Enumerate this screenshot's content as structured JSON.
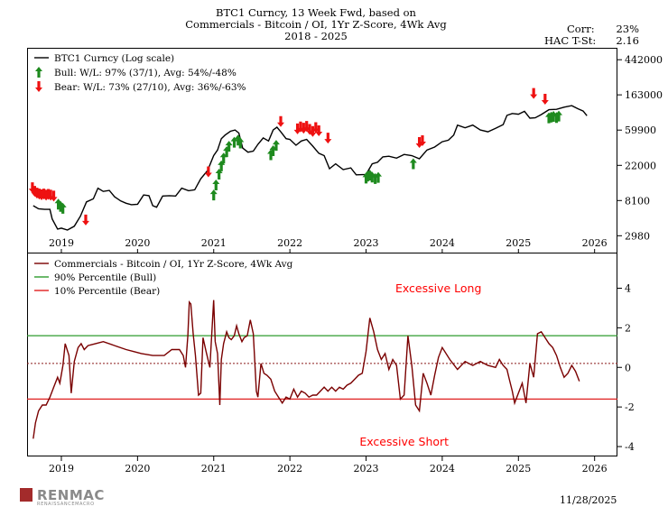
{
  "header": {
    "title_line1": "BTC1 Curncy, 13 Week Fwd, based on",
    "title_line2": "Commercials - Bitcoin / OI, 1Yr Z-Score, 4Wk Avg",
    "title_line3": "2018 - 2025",
    "corr_label": "Corr:",
    "corr_value": "23%",
    "hac_label": "HAC T-St:",
    "hac_value": "2.16"
  },
  "footer": {
    "logo_text": "RENMAC",
    "logo_sub": "RENAISSANCEMACRO",
    "date": "11/28/2025"
  },
  "colors": {
    "price_line": "#000000",
    "zscore_line": "#7a0000",
    "bull_line": "#2e9b2e",
    "bear_line": "#e02020",
    "bull_arrow": "#1e8a1e",
    "bear_arrow": "#ee1111",
    "annotation": "#ff0000"
  },
  "chart_data": [
    {
      "type": "line",
      "scale": "log",
      "title": "",
      "ylabel": "",
      "xlabel": "",
      "ylim": [
        1800,
        620000
      ],
      "xlim": [
        2018.55,
        2026.3
      ],
      "x_ticks": [
        "2019",
        "2020",
        "2021",
        "2022",
        "2023",
        "2024",
        "2025",
        "2026"
      ],
      "y_ticks": [
        "442000",
        "163000",
        "59900",
        "22000",
        "8100",
        "2980"
      ],
      "y_tick_values": [
        442000,
        163000,
        59900,
        22000,
        8100,
        2980
      ],
      "legend": [
        {
          "label": "BTC1 Curncy (Log scale)",
          "marker": "line"
        },
        {
          "label": "Bull:  W/L: 97% (37/1), Avg: 54%/-48%",
          "marker": "up-arrow"
        },
        {
          "label": "Bear:  W/L: 73% (27/10), Avg: 36%/-63%",
          "marker": "down-arrow"
        }
      ],
      "legend_position": "top-left",
      "series": [
        {
          "name": "BTC1 Curncy (Log scale)",
          "x": [
            2018.63,
            2018.7,
            2018.78,
            2018.85,
            2018.88,
            2018.95,
            2019.0,
            2019.08,
            2019.17,
            2019.25,
            2019.33,
            2019.42,
            2019.48,
            2019.55,
            2019.63,
            2019.7,
            2019.78,
            2019.85,
            2019.92,
            2020.0,
            2020.08,
            2020.15,
            2020.2,
            2020.25,
            2020.33,
            2020.42,
            2020.5,
            2020.58,
            2020.67,
            2020.75,
            2020.83,
            2020.92,
            2021.0,
            2021.05,
            2021.1,
            2021.15,
            2021.22,
            2021.28,
            2021.33,
            2021.38,
            2021.45,
            2021.52,
            2021.58,
            2021.65,
            2021.72,
            2021.78,
            2021.83,
            2021.88,
            2021.95,
            2022.0,
            2022.08,
            2022.15,
            2022.22,
            2022.3,
            2022.38,
            2022.45,
            2022.52,
            2022.6,
            2022.7,
            2022.8,
            2022.87,
            2022.95,
            2023.0,
            2023.08,
            2023.15,
            2023.22,
            2023.3,
            2023.4,
            2023.5,
            2023.6,
            2023.7,
            2023.8,
            2023.9,
            2024.0,
            2024.08,
            2024.15,
            2024.2,
            2024.3,
            2024.4,
            2024.5,
            2024.6,
            2024.7,
            2024.8,
            2024.85,
            2024.92,
            2025.0,
            2025.08,
            2025.15,
            2025.22,
            2025.3,
            2025.4,
            2025.5,
            2025.6,
            2025.7,
            2025.78,
            2025.85,
            2025.9
          ],
          "values": [
            7000,
            6400,
            6300,
            6300,
            4800,
            3600,
            3700,
            3500,
            3900,
            5200,
            7800,
            8500,
            11500,
            10500,
            10800,
            9000,
            8000,
            7500,
            7200,
            7300,
            9500,
            9300,
            7000,
            6700,
            9200,
            9300,
            9200,
            11500,
            10700,
            11000,
            15000,
            19000,
            29000,
            34000,
            47000,
            52000,
            58000,
            60000,
            55000,
            36000,
            32000,
            33000,
            40000,
            48000,
            44000,
            60000,
            65000,
            57000,
            47000,
            46000,
            39000,
            44000,
            46000,
            38000,
            31000,
            29000,
            20000,
            23000,
            19500,
            20500,
            16800,
            16900,
            17000,
            23000,
            24000,
            28000,
            28500,
            27000,
            30000,
            29000,
            26500,
            34000,
            37000,
            43000,
            45000,
            52000,
            69000,
            64000,
            69000,
            60000,
            57000,
            63000,
            70000,
            91000,
            96000,
            94000,
            102000,
            84000,
            85000,
            93000,
            107000,
            108000,
            115000,
            120000,
            110000,
            103000,
            90000
          ]
        }
      ],
      "bull_signals": {
        "x": [
          2018.96,
          2018.99,
          2019.02,
          2021.0,
          2021.03,
          2021.07,
          2021.1,
          2021.13,
          2021.17,
          2021.2,
          2021.27,
          2021.32,
          2021.35,
          2021.75,
          2021.78,
          2021.82,
          2023.0,
          2023.02,
          2023.05,
          2023.08,
          2023.12,
          2023.16,
          2023.62,
          2025.4,
          2025.43,
          2025.46,
          2025.5,
          2025.53
        ],
        "values": [
          8100,
          7600,
          7200,
          10500,
          14000,
          19000,
          24000,
          30000,
          36000,
          42000,
          47000,
          50000,
          46000,
          33000,
          37000,
          43000,
          17000,
          18000,
          18500,
          17500,
          16800,
          17300,
          25500,
          94000,
          96000,
          98000,
          95000,
          99000
        ]
      },
      "bear_signals": {
        "x": [
          2018.62,
          2018.65,
          2018.68,
          2018.71,
          2018.74,
          2018.77,
          2018.8,
          2018.83,
          2018.86,
          2018.9,
          2019.32,
          2020.93,
          2021.88,
          2022.1,
          2022.14,
          2022.18,
          2022.22,
          2022.26,
          2022.3,
          2022.34,
          2022.38,
          2022.5,
          2023.7,
          2023.74,
          2025.2,
          2025.35
        ],
        "values": [
          10500,
          9500,
          9000,
          8800,
          8600,
          8800,
          8500,
          8700,
          8500,
          8300,
          4200,
          16500,
          69000,
          56000,
          59000,
          57000,
          60000,
          55000,
          52000,
          58000,
          53000,
          43000,
          38000,
          40000,
          153000,
          130000
        ]
      }
    },
    {
      "type": "line",
      "title": "",
      "ylabel": "",
      "xlabel": "",
      "ylim": [
        -4.5,
        5.8
      ],
      "xlim": [
        2018.55,
        2026.3
      ],
      "x_ticks": [
        "2019",
        "2020",
        "2021",
        "2022",
        "2023",
        "2024",
        "2025",
        "2026"
      ],
      "y_ticks": [
        "4",
        "2",
        "0",
        "-2",
        "-4"
      ],
      "y_tick_values": [
        4,
        2,
        0,
        -2,
        -4
      ],
      "legend": [
        {
          "label": "Commercials - Bitcoin / OI, 1Yr Z-Score, 4Wk Avg",
          "color": "#7a0000"
        },
        {
          "label": "90% Percentile (Bull)",
          "color": "#2e9b2e"
        },
        {
          "label": "10% Percentile (Bear)",
          "color": "#e02020"
        }
      ],
      "legend_position": "top-left",
      "thresholds": {
        "bull_90": 1.6,
        "bear_10": -1.6,
        "zero_ref": 0.2
      },
      "annotations": [
        {
          "text": "Excessive Long",
          "x": 2023.95,
          "y": 3.8
        },
        {
          "text": "Excessive Short",
          "x": 2023.5,
          "y": -3.95
        }
      ],
      "series": [
        {
          "name": "Commercials - Bitcoin / OI, 1Yr Z-Score, 4Wk Avg",
          "x": [
            2018.63,
            2018.66,
            2018.7,
            2018.75,
            2018.8,
            2018.85,
            2018.9,
            2018.95,
            2018.98,
            2019.02,
            2019.05,
            2019.1,
            2019.13,
            2019.17,
            2019.22,
            2019.26,
            2019.3,
            2019.35,
            2019.45,
            2019.55,
            2019.7,
            2019.85,
            2019.95,
            2020.05,
            2020.2,
            2020.35,
            2020.45,
            2020.55,
            2020.6,
            2020.63,
            2020.66,
            2020.68,
            2020.7,
            2020.73,
            2020.76,
            2020.8,
            2020.83,
            2020.86,
            2020.9,
            2020.95,
            2021.0,
            2021.02,
            2021.05,
            2021.08,
            2021.1,
            2021.13,
            2021.17,
            2021.2,
            2021.23,
            2021.27,
            2021.3,
            2021.33,
            2021.37,
            2021.4,
            2021.44,
            2021.48,
            2021.52,
            2021.56,
            2021.58,
            2021.62,
            2021.66,
            2021.7,
            2021.75,
            2021.8,
            2021.85,
            2021.9,
            2021.95,
            2022.0,
            2022.05,
            2022.1,
            2022.15,
            2022.2,
            2022.25,
            2022.3,
            2022.35,
            2022.4,
            2022.45,
            2022.5,
            2022.55,
            2022.6,
            2022.65,
            2022.7,
            2022.75,
            2022.8,
            2022.85,
            2022.9,
            2022.95,
            2023.0,
            2023.05,
            2023.1,
            2023.15,
            2023.2,
            2023.25,
            2023.3,
            2023.35,
            2023.4,
            2023.45,
            2023.5,
            2023.55,
            2023.6,
            2023.65,
            2023.7,
            2023.75,
            2023.8,
            2023.85,
            2023.9,
            2023.95,
            2024.0,
            2024.1,
            2024.2,
            2024.3,
            2024.4,
            2024.5,
            2024.6,
            2024.7,
            2024.75,
            2024.8,
            2024.85,
            2024.88,
            2024.92,
            2024.95,
            2025.0,
            2025.05,
            2025.1,
            2025.15,
            2025.2,
            2025.25,
            2025.3,
            2025.35,
            2025.4,
            2025.45,
            2025.5,
            2025.55,
            2025.6,
            2025.65,
            2025.7,
            2025.75,
            2025.8
          ],
          "values": [
            -3.6,
            -2.8,
            -2.2,
            -1.9,
            -1.9,
            -1.5,
            -1.0,
            -0.5,
            -0.8,
            0.1,
            1.2,
            0.6,
            -1.3,
            0.3,
            1.0,
            1.2,
            0.9,
            1.1,
            1.2,
            1.3,
            1.1,
            0.9,
            0.8,
            0.7,
            0.6,
            0.6,
            0.9,
            0.9,
            0.6,
            0.0,
            1.6,
            3.3,
            3.2,
            1.7,
            0.6,
            -1.4,
            -1.3,
            1.5,
            0.8,
            0.0,
            3.4,
            1.3,
            0.7,
            -1.9,
            0.4,
            1.2,
            1.8,
            1.5,
            1.4,
            1.6,
            2.1,
            1.7,
            1.3,
            1.5,
            1.6,
            2.4,
            1.7,
            -1.2,
            -1.5,
            0.2,
            -0.3,
            -0.4,
            -0.6,
            -1.2,
            -1.5,
            -1.8,
            -1.5,
            -1.6,
            -1.1,
            -1.5,
            -1.2,
            -1.3,
            -1.5,
            -1.4,
            -1.4,
            -1.2,
            -1.0,
            -1.2,
            -1.0,
            -1.2,
            -1.0,
            -1.1,
            -0.9,
            -0.8,
            -0.6,
            -0.4,
            -0.3,
            0.8,
            2.5,
            1.8,
            0.9,
            0.4,
            0.7,
            -0.1,
            0.4,
            0.1,
            -1.6,
            -1.4,
            1.6,
            0.1,
            -1.9,
            -2.2,
            -0.3,
            -0.8,
            -1.4,
            -0.4,
            0.5,
            1.0,
            0.4,
            -0.1,
            0.3,
            0.1,
            0.3,
            0.1,
            0.0,
            0.4,
            0.1,
            -0.1,
            -0.6,
            -1.2,
            -1.8,
            -1.3,
            -0.8,
            -1.8,
            0.2,
            -0.5,
            1.7,
            1.8,
            1.5,
            1.2,
            1.0,
            0.6,
            0.0,
            -0.5,
            -0.3,
            0.1,
            -0.2,
            -0.7
          ]
        }
      ]
    }
  ]
}
